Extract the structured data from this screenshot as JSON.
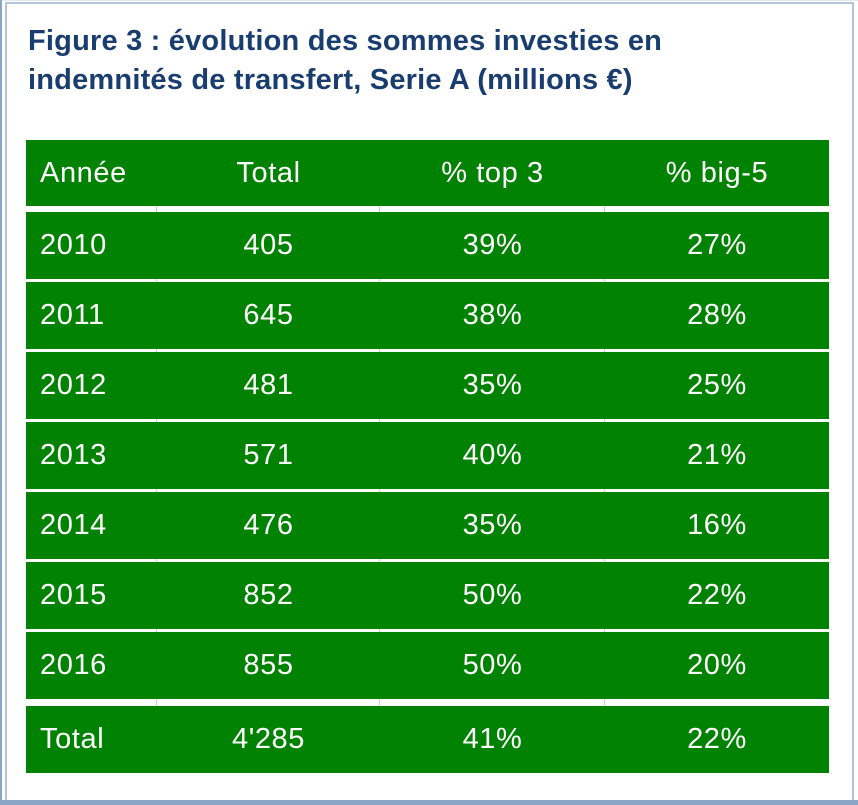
{
  "page": {
    "title_lines": [
      "Figure 3 : évolution des sommes investies en",
      "indemnités de transfert, Serie A (millions €)"
    ]
  },
  "colors": {
    "table_green": "#028202",
    "title_navy": "#1a3d70",
    "frame_outer_blue": "#8aa5c5",
    "frame_inner_blue": "#b3c5dd",
    "cell_text": "#ffffff"
  },
  "chart_data": {
    "type": "table",
    "title": "Figure 3 : évolution des sommes investies en indemnités de transfert, Serie A (millions €)",
    "units": "millions €",
    "columns": [
      "Année",
      "Total",
      "% top 3",
      "% big-5"
    ],
    "rows": [
      [
        "2010",
        "405",
        "39%",
        "27%"
      ],
      [
        "2011",
        "645",
        "38%",
        "28%"
      ],
      [
        "2012",
        "481",
        "35%",
        "25%"
      ],
      [
        "2013",
        "571",
        "40%",
        "21%"
      ],
      [
        "2014",
        "476",
        "35%",
        "16%"
      ],
      [
        "2015",
        "852",
        "50%",
        "22%"
      ],
      [
        "2016",
        "855",
        "50%",
        "20%"
      ]
    ],
    "footer": [
      "Total",
      "4'285",
      "41%",
      "22%"
    ]
  }
}
